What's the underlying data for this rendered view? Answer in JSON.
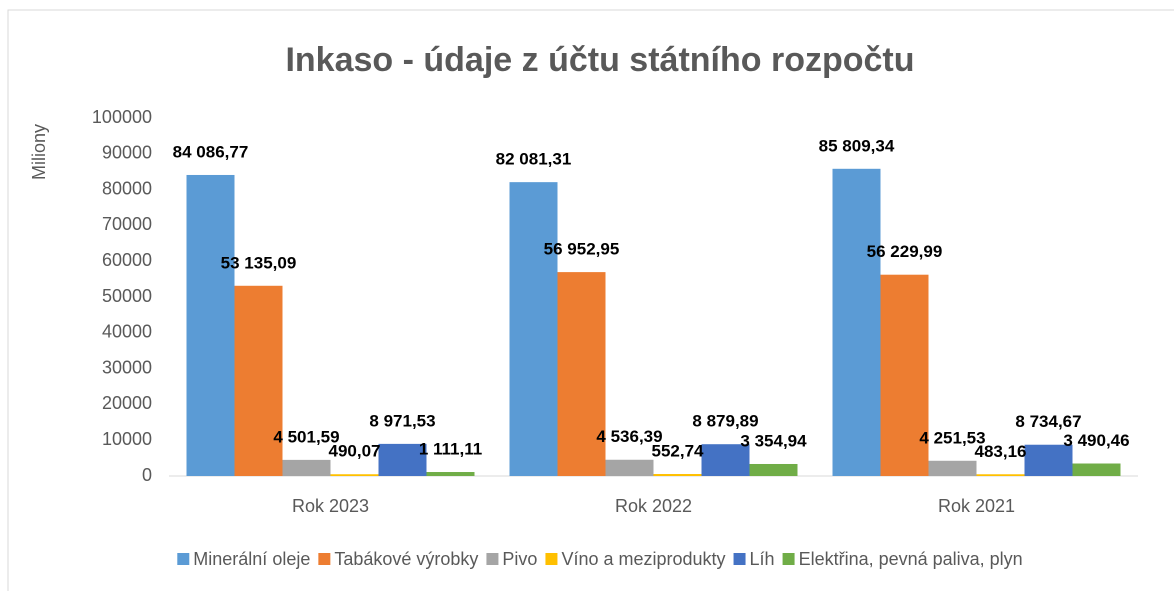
{
  "chart_data": {
    "type": "bar",
    "title": "Inkaso - údaje z účtu státního rozpočtu",
    "y_label": "Miliony",
    "categories": [
      "Rok 2023",
      "Rok 2022",
      "Rok 2021"
    ],
    "series": [
      {
        "name": "Minerální oleje",
        "color": "#5b9bd5",
        "values": [
          84086.77,
          82081.31,
          85809.34
        ],
        "value_labels": [
          "84 086,77",
          "82 081,31",
          "85 809,34"
        ]
      },
      {
        "name": "Tabákové výrobky",
        "color": "#ed7d31",
        "values": [
          53135.09,
          56952.95,
          56229.99
        ],
        "value_labels": [
          "53 135,09",
          "56 952,95",
          "56 229,99"
        ]
      },
      {
        "name": "Pivo",
        "color": "#a5a5a5",
        "values": [
          4501.59,
          4536.39,
          4251.53
        ],
        "value_labels": [
          "4 501,59",
          "4 536,39",
          "4 251,53"
        ]
      },
      {
        "name": "Víno a meziprodukty",
        "color": "#ffc000",
        "values": [
          490.07,
          552.74,
          483.16
        ],
        "value_labels": [
          "490,07",
          "552,74",
          "483,16"
        ]
      },
      {
        "name": "Líh",
        "color": "#4472c4",
        "values": [
          8971.53,
          8879.89,
          8734.67
        ],
        "value_labels": [
          "8 971,53",
          "8 879,89",
          "8 734,67"
        ]
      },
      {
        "name": "Elektřina, pevná paliva, plyn",
        "color": "#70ad47",
        "values": [
          1111.11,
          3354.94,
          3490.46
        ],
        "value_labels": [
          "1 111,11",
          "3 354,94",
          "3 490,46"
        ]
      }
    ],
    "ylim": [
      0,
      100000
    ],
    "yticks": [
      0,
      10000,
      20000,
      30000,
      40000,
      50000,
      60000,
      70000,
      80000,
      90000,
      100000
    ],
    "grid": false,
    "legend": "bottom"
  }
}
